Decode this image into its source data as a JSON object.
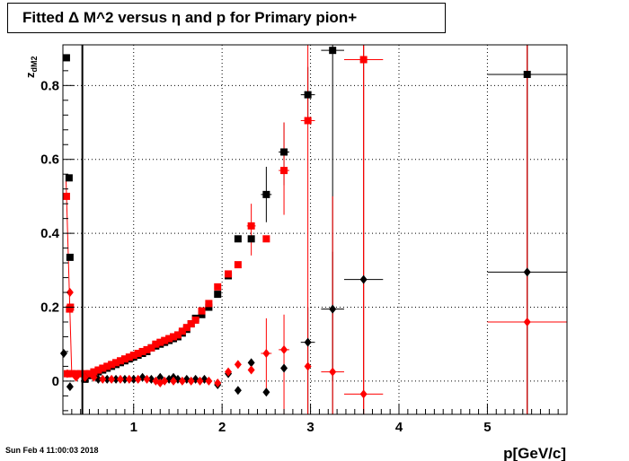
{
  "title": "Fitted Δ M^2 versus η and p for Primary pion+",
  "footer": "Sun Feb  4 11:00:03 2018",
  "colors": {
    "series_black": "#000000",
    "series_red": "#ff0000"
  },
  "chart_data": {
    "type": "scatter",
    "title": "Fitted Δ M^2 versus η and p for Primary pion+",
    "xlabel": "p[GeV/c]",
    "ylabel": "z",
    "ylabel_sub": "dM2",
    "xlim": [
      0.2,
      5.9
    ],
    "ylim": [
      -0.09,
      0.91
    ],
    "xticks": [
      1,
      2,
      3,
      4,
      5
    ],
    "yticks": [
      0,
      0.2,
      0.4,
      0.6,
      0.8
    ],
    "xtick_labels": [
      "1",
      "2",
      "3",
      "4",
      "5"
    ],
    "ytick_labels": [
      "0",
      "0.2",
      "0.4",
      "0.6",
      "0.8"
    ],
    "grid": true,
    "vline_x": 0.42,
    "series": [
      {
        "marker": "square",
        "color": "#000000",
        "points": [
          {
            "x": 0.24,
            "y": 0.875
          },
          {
            "x": 0.27,
            "y": 0.55
          },
          {
            "x": 0.28,
            "y": 0.335
          },
          {
            "x": 0.45,
            "y": 0.005
          },
          {
            "x": 0.5,
            "y": 0.015
          },
          {
            "x": 0.55,
            "y": 0.02
          },
          {
            "x": 0.6,
            "y": 0.025
          },
          {
            "x": 0.65,
            "y": 0.03
          },
          {
            "x": 0.7,
            "y": 0.035
          },
          {
            "x": 0.75,
            "y": 0.04
          },
          {
            "x": 0.8,
            "y": 0.045
          },
          {
            "x": 0.85,
            "y": 0.05
          },
          {
            "x": 0.9,
            "y": 0.055
          },
          {
            "x": 0.95,
            "y": 0.06
          },
          {
            "x": 1.0,
            "y": 0.065
          },
          {
            "x": 1.05,
            "y": 0.07
          },
          {
            "x": 1.1,
            "y": 0.075
          },
          {
            "x": 1.15,
            "y": 0.08
          },
          {
            "x": 1.2,
            "y": 0.09
          },
          {
            "x": 1.25,
            "y": 0.095
          },
          {
            "x": 1.3,
            "y": 0.1
          },
          {
            "x": 1.35,
            "y": 0.105
          },
          {
            "x": 1.4,
            "y": 0.11
          },
          {
            "x": 1.45,
            "y": 0.115
          },
          {
            "x": 1.5,
            "y": 0.12
          },
          {
            "x": 1.55,
            "y": 0.13
          },
          {
            "x": 1.6,
            "y": 0.14
          },
          {
            "x": 1.65,
            "y": 0.155
          },
          {
            "x": 1.7,
            "y": 0.17
          },
          {
            "x": 1.77,
            "y": 0.18
          },
          {
            "x": 1.85,
            "y": 0.2
          },
          {
            "x": 1.95,
            "y": 0.235
          },
          {
            "x": 2.07,
            "y": 0.285
          },
          {
            "x": 2.18,
            "y": 0.385
          },
          {
            "x": 2.33,
            "y": 0.385
          },
          {
            "x": 2.5,
            "y": 0.505
          },
          {
            "x": 2.7,
            "y": 0.62
          },
          {
            "x": 2.97,
            "y": 0.775
          },
          {
            "x": 3.25,
            "y": 0.895
          },
          {
            "x": 5.45,
            "y": 0.83
          }
        ]
      },
      {
        "marker": "square",
        "color": "#ff0000",
        "points": [
          {
            "x": 0.24,
            "y": 0.5
          },
          {
            "x": 0.275,
            "y": 0.195
          },
          {
            "x": 0.285,
            "y": 0.2
          },
          {
            "x": 0.25,
            "y": 0.02
          },
          {
            "x": 0.3,
            "y": 0.02
          },
          {
            "x": 0.35,
            "y": 0.02
          },
          {
            "x": 0.4,
            "y": 0.02
          },
          {
            "x": 0.45,
            "y": 0.02
          },
          {
            "x": 0.5,
            "y": 0.02
          },
          {
            "x": 0.55,
            "y": 0.025
          },
          {
            "x": 0.6,
            "y": 0.03
          },
          {
            "x": 0.65,
            "y": 0.035
          },
          {
            "x": 0.7,
            "y": 0.04
          },
          {
            "x": 0.75,
            "y": 0.045
          },
          {
            "x": 0.8,
            "y": 0.05
          },
          {
            "x": 0.85,
            "y": 0.055
          },
          {
            "x": 0.9,
            "y": 0.06
          },
          {
            "x": 0.95,
            "y": 0.065
          },
          {
            "x": 1.0,
            "y": 0.07
          },
          {
            "x": 1.05,
            "y": 0.075
          },
          {
            "x": 1.1,
            "y": 0.08
          },
          {
            "x": 1.15,
            "y": 0.085
          },
          {
            "x": 1.2,
            "y": 0.09
          },
          {
            "x": 1.25,
            "y": 0.1
          },
          {
            "x": 1.3,
            "y": 0.105
          },
          {
            "x": 1.35,
            "y": 0.11
          },
          {
            "x": 1.4,
            "y": 0.115
          },
          {
            "x": 1.45,
            "y": 0.12
          },
          {
            "x": 1.5,
            "y": 0.125
          },
          {
            "x": 1.55,
            "y": 0.135
          },
          {
            "x": 1.6,
            "y": 0.145
          },
          {
            "x": 1.65,
            "y": 0.155
          },
          {
            "x": 1.7,
            "y": 0.165
          },
          {
            "x": 1.77,
            "y": 0.19
          },
          {
            "x": 1.85,
            "y": 0.21
          },
          {
            "x": 1.95,
            "y": 0.255
          },
          {
            "x": 2.07,
            "y": 0.29
          },
          {
            "x": 2.18,
            "y": 0.315
          },
          {
            "x": 2.33,
            "y": 0.42
          },
          {
            "x": 2.5,
            "y": 0.385
          },
          {
            "x": 2.7,
            "y": 0.57
          },
          {
            "x": 2.97,
            "y": 0.705
          },
          {
            "x": 3.6,
            "y": 0.87
          }
        ]
      },
      {
        "marker": "diamond",
        "color": "#000000",
        "points": [
          {
            "x": 0.21,
            "y": 0.075
          },
          {
            "x": 0.28,
            "y": -0.015
          },
          {
            "x": 0.45,
            "y": 0.01
          },
          {
            "x": 0.6,
            "y": 0.005
          },
          {
            "x": 0.7,
            "y": 0.005
          },
          {
            "x": 0.8,
            "y": 0.005
          },
          {
            "x": 0.9,
            "y": 0.005
          },
          {
            "x": 1.0,
            "y": 0.005
          },
          {
            "x": 1.1,
            "y": 0.01
          },
          {
            "x": 1.2,
            "y": 0.005
          },
          {
            "x": 1.3,
            "y": 0.01
          },
          {
            "x": 1.4,
            "y": 0.005
          },
          {
            "x": 1.45,
            "y": 0.01
          },
          {
            "x": 1.5,
            "y": 0.005
          },
          {
            "x": 1.6,
            "y": 0.005
          },
          {
            "x": 1.7,
            "y": 0.005
          },
          {
            "x": 1.8,
            "y": 0.005
          },
          {
            "x": 1.95,
            "y": -0.01
          },
          {
            "x": 2.07,
            "y": 0.02
          },
          {
            "x": 2.18,
            "y": -0.025
          },
          {
            "x": 2.33,
            "y": 0.05
          },
          {
            "x": 2.5,
            "y": -0.03
          },
          {
            "x": 2.7,
            "y": 0.035
          },
          {
            "x": 2.97,
            "y": 0.105
          },
          {
            "x": 3.25,
            "y": 0.195
          },
          {
            "x": 3.6,
            "y": 0.275
          },
          {
            "x": 5.45,
            "y": 0.295
          }
        ]
      },
      {
        "marker": "diamond",
        "color": "#ff0000",
        "points": [
          {
            "x": 0.28,
            "y": 0.24
          },
          {
            "x": 0.25,
            "y": 0.02
          },
          {
            "x": 0.35,
            "y": 0.01
          },
          {
            "x": 0.45,
            "y": 0.01
          },
          {
            "x": 0.55,
            "y": 0.01
          },
          {
            "x": 0.65,
            "y": 0.005
          },
          {
            "x": 0.75,
            "y": 0.005
          },
          {
            "x": 0.85,
            "y": 0.005
          },
          {
            "x": 0.95,
            "y": 0.005
          },
          {
            "x": 1.05,
            "y": 0.005
          },
          {
            "x": 1.15,
            "y": 0.005
          },
          {
            "x": 1.25,
            "y": 0.0
          },
          {
            "x": 1.3,
            "y": -0.005
          },
          {
            "x": 1.35,
            "y": 0.0
          },
          {
            "x": 1.45,
            "y": 0.0
          },
          {
            "x": 1.55,
            "y": 0.0
          },
          {
            "x": 1.65,
            "y": 0.0
          },
          {
            "x": 1.75,
            "y": 0.0
          },
          {
            "x": 1.85,
            "y": 0.0
          },
          {
            "x": 1.95,
            "y": -0.005
          },
          {
            "x": 2.07,
            "y": 0.025
          },
          {
            "x": 2.18,
            "y": 0.045
          },
          {
            "x": 2.33,
            "y": 0.03
          },
          {
            "x": 2.5,
            "y": 0.075
          },
          {
            "x": 2.7,
            "y": 0.085
          },
          {
            "x": 2.97,
            "y": 0.04
          },
          {
            "x": 3.25,
            "y": 0.025
          },
          {
            "x": 3.6,
            "y": -0.035
          },
          {
            "x": 5.45,
            "y": 0.16
          }
        ]
      }
    ],
    "error_bars": [
      {
        "color": "#000000",
        "x": 2.97,
        "y": 0.775,
        "ex": 0.08,
        "ylow": 0.7,
        "yhigh": 0.85
      },
      {
        "color": "#000000",
        "x": 3.25,
        "y": 0.895,
        "ex": 0.13,
        "ylow": -0.09,
        "yhigh": 0.91
      },
      {
        "color": "#000000",
        "x": 3.6,
        "y": 0.275,
        "ex": 0.22,
        "ylow": -0.09,
        "yhigh": 0.91
      },
      {
        "color": "#000000",
        "x": 5.45,
        "y": 0.83,
        "ex": 0.45,
        "ylow": -0.09,
        "yhigh": 0.91
      },
      {
        "color": "#000000",
        "x": 5.45,
        "y": 0.295,
        "ex": 0.45,
        "ylow": -0.09,
        "yhigh": 0.91
      },
      {
        "color": "#000000",
        "x": 2.7,
        "y": 0.62,
        "ex": 0.06,
        "ylow": 0.53,
        "yhigh": 0.7
      },
      {
        "color": "#000000",
        "x": 2.97,
        "y": 0.105,
        "ex": 0.08,
        "ylow": -0.09,
        "yhigh": 0.2
      },
      {
        "color": "#000000",
        "x": 3.25,
        "y": 0.195,
        "ex": 0.13,
        "ylow": 0.0,
        "yhigh": 0.35
      },
      {
        "color": "#ff0000",
        "x": 2.97,
        "y": 0.705,
        "ex": 0.08,
        "ylow": -0.09,
        "yhigh": 0.91
      },
      {
        "color": "#ff0000",
        "x": 3.6,
        "y": 0.87,
        "ex": 0.22,
        "ylow": -0.09,
        "yhigh": 0.91
      },
      {
        "color": "#ff0000",
        "x": 3.6,
        "y": -0.035,
        "ex": 0.22,
        "ylow": -0.09,
        "yhigh": 0.91
      },
      {
        "color": "#ff0000",
        "x": 3.25,
        "y": 0.025,
        "ex": 0.13,
        "ylow": -0.09,
        "yhigh": 0.5
      },
      {
        "color": "#ff0000",
        "x": 5.45,
        "y": 0.16,
        "ex": 0.45,
        "ylow": -0.09,
        "yhigh": 0.91
      },
      {
        "color": "#ff0000",
        "x": 2.7,
        "y": 0.57,
        "ex": 0.06,
        "ylow": 0.45,
        "yhigh": 0.7
      },
      {
        "color": "#ff0000",
        "x": 2.7,
        "y": 0.085,
        "ex": 0.06,
        "ylow": -0.09,
        "yhigh": 0.18
      },
      {
        "color": "#ff0000",
        "x": 2.5,
        "y": 0.075,
        "ex": 0.06,
        "ylow": -0.02,
        "yhigh": 0.17
      },
      {
        "color": "#ff0000",
        "x": 2.33,
        "y": 0.42,
        "ex": 0.05,
        "ylow": 0.34,
        "yhigh": 0.48
      },
      {
        "color": "#000000",
        "x": 2.5,
        "y": 0.505,
        "ex": 0.06,
        "ylow": 0.43,
        "yhigh": 0.58
      }
    ]
  }
}
